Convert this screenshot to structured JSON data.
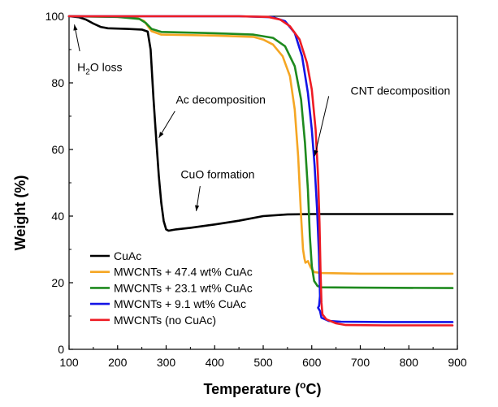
{
  "chart_data": {
    "type": "line",
    "xlabel": "Temperature (",
    "xlabel_sup": "o",
    "xlabel_tail": "C)",
    "ylabel": "Weight (%)",
    "xlim": [
      100,
      900
    ],
    "ylim": [
      0,
      100
    ],
    "xticks": [
      100,
      200,
      300,
      400,
      500,
      600,
      700,
      800,
      900
    ],
    "yticks": [
      0,
      20,
      40,
      60,
      80,
      100
    ],
    "grid": false,
    "legend_position": "bottom-left",
    "series": [
      {
        "name": "CuAc",
        "color": "#000000",
        "points": [
          [
            100,
            100
          ],
          [
            120,
            99.7
          ],
          [
            135,
            99
          ],
          [
            150,
            97.8
          ],
          [
            165,
            96.8
          ],
          [
            180,
            96.4
          ],
          [
            220,
            96.2
          ],
          [
            250,
            96.0
          ],
          [
            262,
            95.4
          ],
          [
            268,
            90
          ],
          [
            274,
            75
          ],
          [
            280,
            62
          ],
          [
            285,
            52
          ],
          [
            290,
            44
          ],
          [
            295,
            38.5
          ],
          [
            300,
            36
          ],
          [
            305,
            35.6
          ],
          [
            320,
            36.0
          ],
          [
            350,
            36.5
          ],
          [
            400,
            37.5
          ],
          [
            450,
            38.6
          ],
          [
            500,
            40.0
          ],
          [
            550,
            40.5
          ],
          [
            600,
            40.6
          ],
          [
            650,
            40.6
          ],
          [
            750,
            40.6
          ],
          [
            890,
            40.6
          ]
        ]
      },
      {
        "name": "MWCNTs + 47.4 wt% CuAc",
        "color": "#f5a623",
        "points": [
          [
            100,
            100
          ],
          [
            200,
            99.8
          ],
          [
            240,
            99.5
          ],
          [
            255,
            98.5
          ],
          [
            270,
            95.5
          ],
          [
            290,
            94.5
          ],
          [
            400,
            94.2
          ],
          [
            480,
            93.8
          ],
          [
            500,
            93.0
          ],
          [
            520,
            91.5
          ],
          [
            540,
            88
          ],
          [
            555,
            82
          ],
          [
            565,
            72
          ],
          [
            572,
            58
          ],
          [
            578,
            40
          ],
          [
            582,
            30
          ],
          [
            585,
            27.2
          ],
          [
            587,
            26
          ],
          [
            592,
            26.5
          ],
          [
            598,
            24.5
          ],
          [
            605,
            23.2
          ],
          [
            620,
            22.9
          ],
          [
            700,
            22.7
          ],
          [
            890,
            22.7
          ]
        ]
      },
      {
        "name": "MWCNTs + 23.1 wt% CuAc",
        "color": "#1e8a1e",
        "points": [
          [
            100,
            100
          ],
          [
            200,
            99.8
          ],
          [
            245,
            99.2
          ],
          [
            258,
            98
          ],
          [
            270,
            96.2
          ],
          [
            290,
            95.3
          ],
          [
            400,
            94.9
          ],
          [
            480,
            94.5
          ],
          [
            520,
            93.5
          ],
          [
            545,
            91
          ],
          [
            565,
            85
          ],
          [
            578,
            75
          ],
          [
            586,
            62
          ],
          [
            592,
            48
          ],
          [
            596,
            34
          ],
          [
            600,
            25
          ],
          [
            605,
            20.5
          ],
          [
            612,
            19
          ],
          [
            620,
            18.6
          ],
          [
            700,
            18.5
          ],
          [
            890,
            18.4
          ]
        ]
      },
      {
        "name": "MWCNTs + 9.1 wt% CuAc",
        "color": "#1414e6",
        "points": [
          [
            100,
            100
          ],
          [
            300,
            100
          ],
          [
            450,
            100
          ],
          [
            520,
            99.7
          ],
          [
            545,
            98.5
          ],
          [
            565,
            95
          ],
          [
            580,
            88
          ],
          [
            592,
            77
          ],
          [
            600,
            66
          ],
          [
            606,
            55
          ],
          [
            611,
            42
          ],
          [
            615,
            28
          ],
          [
            617,
            16
          ],
          [
            615,
            13
          ],
          [
            613,
            12.5
          ],
          [
            617,
            11.5
          ],
          [
            620,
            9.5
          ],
          [
            635,
            8.5
          ],
          [
            660,
            8.3
          ],
          [
            750,
            8.2
          ],
          [
            890,
            8.2
          ]
        ]
      },
      {
        "name": "MWCNTs (no CuAc)",
        "color": "#ee1c24",
        "points": [
          [
            100,
            100
          ],
          [
            300,
            100
          ],
          [
            450,
            100
          ],
          [
            510,
            99.8
          ],
          [
            535,
            99
          ],
          [
            555,
            97
          ],
          [
            575,
            93
          ],
          [
            590,
            86
          ],
          [
            600,
            78
          ],
          [
            608,
            66
          ],
          [
            613,
            52
          ],
          [
            616,
            38
          ],
          [
            618,
            24
          ],
          [
            620,
            14
          ],
          [
            622,
            10.5
          ],
          [
            630,
            9
          ],
          [
            650,
            7.8
          ],
          [
            670,
            7.3
          ],
          [
            750,
            7.2
          ],
          [
            890,
            7.2
          ]
        ]
      }
    ],
    "annotations": [
      {
        "id": "h2o",
        "text_pre": "H",
        "text_sub": "2",
        "text_post": "O loss",
        "text_at": [
          117,
          83.5
        ],
        "arrow_from": [
          122,
          89.5
        ],
        "arrow_to": [
          111,
          97.5
        ]
      },
      {
        "id": "ac",
        "text": "Ac decomposition",
        "text_at": [
          320,
          73.8
        ],
        "arrow_from": [
          318,
          71.5
        ],
        "arrow_to": [
          285,
          63.5
        ]
      },
      {
        "id": "cuo",
        "text": "CuO formation",
        "text_at": [
          330,
          51.3
        ],
        "arrow_from": [
          370,
          49
        ],
        "arrow_to": [
          362,
          41.5
        ]
      },
      {
        "id": "cnt",
        "text": "CNT decomposition",
        "text_at": [
          680,
          76.5
        ],
        "arrow_from": [
          635,
          76
        ],
        "arrow_to": [
          606,
          58
        ]
      }
    ]
  }
}
